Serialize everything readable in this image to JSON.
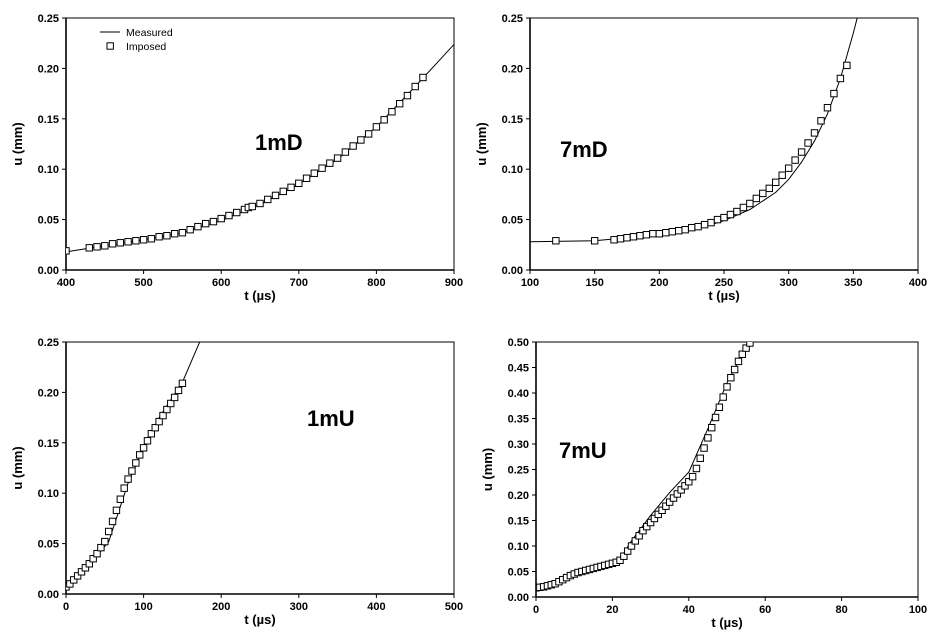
{
  "chart_data": [
    {
      "id": "1mD",
      "type": "scatter",
      "title": "",
      "panel_label": "1mD",
      "xlabel": "t  (µs)",
      "ylabel": "u  (mm)",
      "xlim": [
        400,
        900
      ],
      "ylim": [
        0,
        0.25
      ],
      "xticks": [
        400,
        500,
        600,
        700,
        800,
        900
      ],
      "yticks": [
        0.0,
        0.05,
        0.1,
        0.15,
        0.2,
        0.25
      ],
      "xtick_labels": [
        "400",
        "500",
        "600",
        "700",
        "800",
        "900"
      ],
      "ytick_labels": [
        "0.00",
        "0.05",
        "0.10",
        "0.15",
        "0.20",
        "0.25"
      ],
      "grid": false,
      "legend": {
        "placement": "top-left",
        "entries": [
          {
            "label": "Measured",
            "marker": "line"
          },
          {
            "label": "Imposed",
            "marker": "square"
          }
        ]
      },
      "series": [
        {
          "name": "Measured",
          "style": "line",
          "x": [
            400,
            450,
            500,
            550,
            600,
            650,
            700,
            750,
            800,
            850,
            905
          ],
          "y": [
            0.018,
            0.024,
            0.03,
            0.037,
            0.049,
            0.065,
            0.085,
            0.11,
            0.142,
            0.182,
            0.228
          ]
        },
        {
          "name": "Imposed",
          "style": "square",
          "x": [
            400,
            430,
            440,
            450,
            460,
            470,
            480,
            490,
            500,
            510,
            520,
            530,
            540,
            550,
            560,
            570,
            580,
            590,
            600,
            610,
            620,
            630,
            635,
            640,
            650,
            660,
            670,
            680,
            690,
            700,
            710,
            720,
            730,
            740,
            750,
            760,
            770,
            780,
            790,
            800,
            810,
            820,
            830,
            840,
            850,
            860
          ],
          "y": [
            0.019,
            0.022,
            0.023,
            0.024,
            0.026,
            0.027,
            0.028,
            0.029,
            0.03,
            0.031,
            0.033,
            0.034,
            0.036,
            0.037,
            0.04,
            0.043,
            0.046,
            0.048,
            0.051,
            0.054,
            0.057,
            0.06,
            0.062,
            0.063,
            0.066,
            0.07,
            0.074,
            0.078,
            0.082,
            0.086,
            0.091,
            0.096,
            0.101,
            0.106,
            0.111,
            0.117,
            0.123,
            0.129,
            0.135,
            0.142,
            0.149,
            0.157,
            0.165,
            0.173,
            0.182,
            0.191
          ]
        }
      ]
    },
    {
      "id": "7mD",
      "type": "scatter",
      "title": "",
      "panel_label": "7mD",
      "xlabel": "t  (µs)",
      "ylabel": "u  (mm)",
      "xlim": [
        100,
        400
      ],
      "ylim": [
        0,
        0.25
      ],
      "xticks": [
        100,
        150,
        200,
        250,
        300,
        350,
        400
      ],
      "yticks": [
        0.0,
        0.05,
        0.1,
        0.15,
        0.2,
        0.25
      ],
      "xtick_labels": [
        "100",
        "150",
        "200",
        "250",
        "300",
        "350",
        "400"
      ],
      "ytick_labels": [
        "0.00",
        "0.05",
        "0.10",
        "0.15",
        "0.20",
        "0.25"
      ],
      "grid": false,
      "series": [
        {
          "name": "Measured",
          "style": "line",
          "x": [
            100,
            150,
            200,
            230,
            250,
            270,
            290,
            300,
            310,
            320,
            330,
            340,
            350,
            353
          ],
          "y": [
            0.028,
            0.029,
            0.035,
            0.041,
            0.049,
            0.06,
            0.077,
            0.09,
            0.107,
            0.128,
            0.155,
            0.19,
            0.235,
            0.25
          ]
        },
        {
          "name": "Imposed",
          "style": "square",
          "x": [
            120,
            150,
            165,
            170,
            175,
            180,
            185,
            190,
            195,
            200,
            205,
            210,
            215,
            220,
            225,
            230,
            235,
            240,
            245,
            250,
            255,
            260,
            265,
            270,
            275,
            280,
            285,
            290,
            295,
            300,
            305,
            310,
            315,
            320,
            325,
            330,
            335,
            340,
            345
          ],
          "y": [
            0.029,
            0.029,
            0.03,
            0.031,
            0.032,
            0.033,
            0.034,
            0.035,
            0.036,
            0.036,
            0.037,
            0.038,
            0.039,
            0.04,
            0.042,
            0.043,
            0.045,
            0.047,
            0.05,
            0.052,
            0.055,
            0.058,
            0.062,
            0.066,
            0.071,
            0.076,
            0.081,
            0.087,
            0.094,
            0.101,
            0.109,
            0.117,
            0.126,
            0.136,
            0.148,
            0.161,
            0.175,
            0.19,
            0.203
          ]
        }
      ]
    },
    {
      "id": "1mU",
      "type": "scatter",
      "title": "",
      "panel_label": "1mU",
      "xlabel": "t  (µs)",
      "ylabel": "u  (mm)",
      "xlim": [
        0,
        500
      ],
      "ylim": [
        0,
        0.25
      ],
      "xticks": [
        0,
        100,
        200,
        300,
        400,
        500
      ],
      "yticks": [
        0.0,
        0.05,
        0.1,
        0.15,
        0.2,
        0.25
      ],
      "xtick_labels": [
        "0",
        "100",
        "200",
        "300",
        "400",
        "500"
      ],
      "ytick_labels": [
        "0.00",
        "0.05",
        "0.10",
        "0.15",
        "0.20",
        "0.25"
      ],
      "grid": false,
      "series": [
        {
          "name": "Measured",
          "style": "line",
          "x": [
            0,
            20,
            40,
            55,
            65,
            80,
            100,
            120,
            150,
            175
          ],
          "y": [
            0.005,
            0.02,
            0.038,
            0.052,
            0.075,
            0.11,
            0.145,
            0.175,
            0.21,
            0.255
          ]
        },
        {
          "name": "Imposed",
          "style": "square",
          "x": [
            0,
            5,
            10,
            15,
            20,
            25,
            30,
            35,
            40,
            45,
            50,
            55,
            60,
            65,
            70,
            75,
            80,
            85,
            90,
            95,
            100,
            105,
            110,
            115,
            120,
            125,
            130,
            135,
            140,
            145,
            150
          ],
          "y": [
            0.007,
            0.01,
            0.014,
            0.018,
            0.022,
            0.026,
            0.03,
            0.035,
            0.04,
            0.046,
            0.052,
            0.062,
            0.072,
            0.083,
            0.094,
            0.105,
            0.114,
            0.122,
            0.13,
            0.138,
            0.145,
            0.152,
            0.159,
            0.165,
            0.171,
            0.177,
            0.183,
            0.189,
            0.195,
            0.202,
            0.209
          ]
        }
      ]
    },
    {
      "id": "7mU",
      "type": "scatter",
      "title": "",
      "panel_label": "7mU",
      "xlabel": "t  (µs)",
      "ylabel": "u  (mm)",
      "xlim": [
        0,
        100
      ],
      "ylim": [
        0,
        0.5
      ],
      "xticks": [
        0,
        20,
        40,
        60,
        80,
        100
      ],
      "yticks": [
        0.0,
        0.05,
        0.1,
        0.15,
        0.2,
        0.25,
        0.3,
        0.35,
        0.4,
        0.45,
        0.5
      ],
      "xtick_labels": [
        "0",
        "20",
        "40",
        "60",
        "80",
        "100"
      ],
      "ytick_labels": [
        "0.00",
        "0.05",
        "0.10",
        "0.15",
        "0.20",
        "0.25",
        "0.30",
        "0.35",
        "0.40",
        "0.45",
        "0.50"
      ],
      "grid": false,
      "series": [
        {
          "name": "Measured",
          "style": "line",
          "x": [
            0,
            5,
            10,
            15,
            20,
            22,
            25,
            30,
            35,
            40,
            45,
            50,
            55,
            58
          ],
          "y": [
            0.018,
            0.025,
            0.042,
            0.055,
            0.068,
            0.075,
            0.11,
            0.16,
            0.205,
            0.245,
            0.33,
            0.42,
            0.49,
            0.505
          ]
        },
        {
          "name": "Imposed",
          "style": "square",
          "x": [
            0,
            1,
            2,
            3,
            4,
            5,
            6,
            7,
            8,
            9,
            10,
            11,
            12,
            13,
            14,
            15,
            16,
            17,
            18,
            19,
            20,
            21,
            22,
            23,
            24,
            25,
            26,
            27,
            28,
            29,
            30,
            31,
            32,
            33,
            34,
            35,
            36,
            37,
            38,
            39,
            40,
            41,
            42,
            43,
            44,
            45,
            46,
            47,
            48,
            49,
            50,
            51,
            52,
            53,
            54,
            55,
            56
          ],
          "y": [
            0.018,
            0.019,
            0.02,
            0.022,
            0.024,
            0.026,
            0.03,
            0.034,
            0.038,
            0.042,
            0.045,
            0.048,
            0.05,
            0.052,
            0.054,
            0.056,
            0.058,
            0.06,
            0.062,
            0.064,
            0.066,
            0.068,
            0.072,
            0.08,
            0.09,
            0.1,
            0.11,
            0.12,
            0.13,
            0.138,
            0.146,
            0.154,
            0.162,
            0.17,
            0.178,
            0.186,
            0.194,
            0.202,
            0.21,
            0.218,
            0.226,
            0.236,
            0.252,
            0.272,
            0.292,
            0.312,
            0.332,
            0.352,
            0.372,
            0.392,
            0.412,
            0.43,
            0.446,
            0.462,
            0.476,
            0.488,
            0.498
          ]
        }
      ]
    }
  ]
}
